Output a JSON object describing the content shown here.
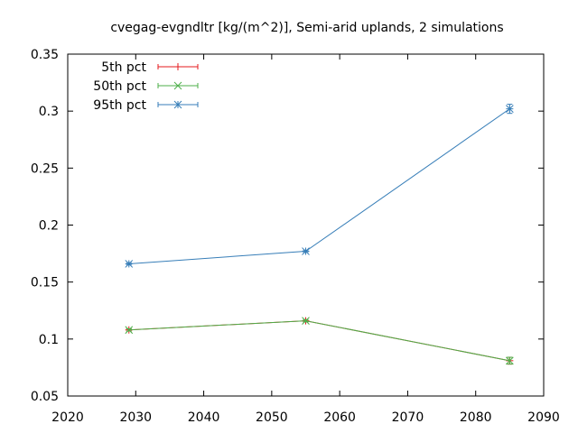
{
  "chart_data": {
    "type": "line",
    "title": "cvegag-evgndltr [kg/(m^2)], Semi-arid uplands, 2 simulations",
    "xlim": [
      2020,
      2090
    ],
    "ylim": [
      0.05,
      0.35
    ],
    "xticks": [
      2020,
      2030,
      2040,
      2050,
      2060,
      2070,
      2080,
      2090
    ],
    "yticks": [
      0.05,
      0.1,
      0.15,
      0.2,
      0.25,
      0.3,
      0.35
    ],
    "ytick_labels": [
      "0.05",
      "0.1",
      "0.15",
      "0.2",
      "0.25",
      "0.3",
      "0.35"
    ],
    "grid": false,
    "legend_position": "top-left",
    "x": [
      2029,
      2055,
      2085
    ],
    "series": [
      {
        "name": "5th pct",
        "color": "#e41a1c",
        "marker": "plus",
        "values": [
          0.108,
          0.116,
          0.081
        ],
        "err": [
          0.001,
          0.001,
          0.003
        ]
      },
      {
        "name": "50th pct",
        "color": "#4daf4a",
        "marker": "cross",
        "values": [
          0.108,
          0.116,
          0.081
        ],
        "err": [
          0.001,
          0.001,
          0.003
        ]
      },
      {
        "name": "95th pct",
        "color": "#377eb8",
        "marker": "star",
        "values": [
          0.166,
          0.177,
          0.302
        ],
        "err": [
          0.001,
          0.001,
          0.004
        ]
      }
    ]
  }
}
